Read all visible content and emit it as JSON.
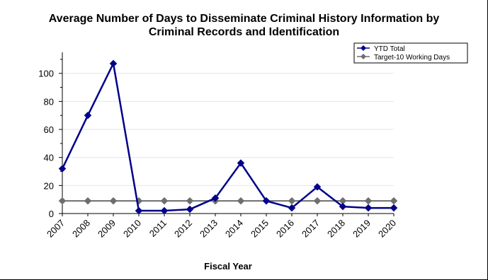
{
  "chart_data": {
    "type": "line",
    "title_lines": [
      "Average Number of Days to Disseminate Criminal History Information by",
      "Criminal Records and Identification"
    ],
    "xlabel": "Fiscal Year",
    "ylabel": "",
    "categories": [
      "2007",
      "2008",
      "2009",
      "2010",
      "2011",
      "2012",
      "2013",
      "2014",
      "2015",
      "2016",
      "2017",
      "2018",
      "2019",
      "2020"
    ],
    "ylim": [
      0,
      115
    ],
    "yticks": [
      0,
      20,
      40,
      60,
      80,
      100
    ],
    "grid": true,
    "legend_position": "top-right",
    "series": [
      {
        "name": "YTD Total",
        "color": "#00008b",
        "marker": "diamond",
        "values": [
          32,
          70,
          107,
          2,
          2,
          3,
          11,
          36,
          9,
          4,
          19,
          5,
          4,
          4
        ]
      },
      {
        "name": "Target-10 Working Days",
        "color": "#6e6e6e",
        "marker": "diamond",
        "values": [
          9,
          9,
          9,
          9,
          9,
          9,
          9,
          9,
          9,
          9,
          9,
          9,
          9,
          9
        ]
      }
    ]
  }
}
